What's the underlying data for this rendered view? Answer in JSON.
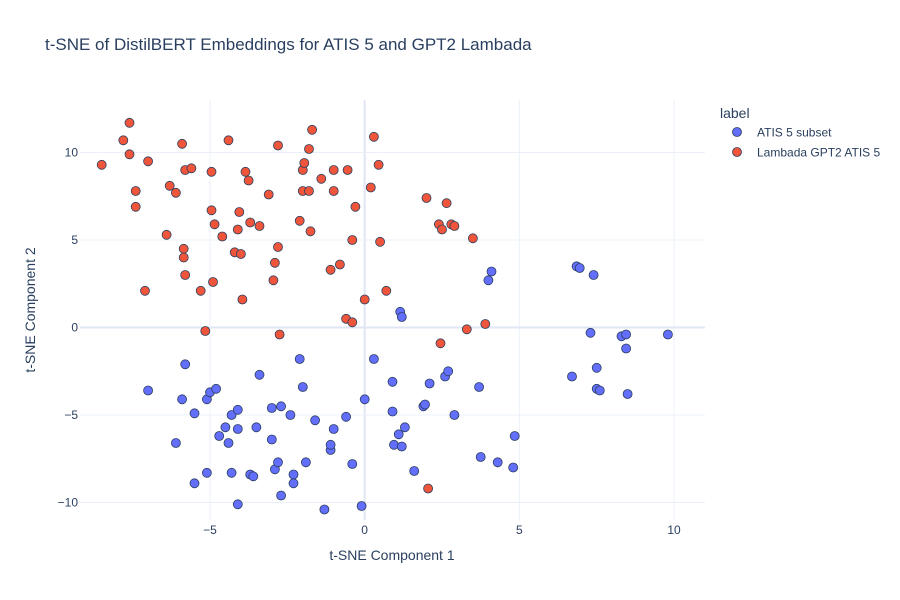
{
  "chart_data": {
    "type": "scatter",
    "title": "t-SNE of DistilBERT Embeddings for ATIS 5 and GPT2 Lambada",
    "xlabel": "t-SNE Component 1",
    "ylabel": "t-SNE Component 2",
    "xlim": [
      -9.2,
      11
    ],
    "ylim": [
      -11,
      13
    ],
    "xticks": [
      -5,
      0,
      5,
      10
    ],
    "yticks": [
      -10,
      -5,
      0,
      5,
      10
    ],
    "xtick_labels": [
      "−5",
      "0",
      "5",
      "10"
    ],
    "ytick_labels": [
      "−10",
      "−5",
      "0",
      "5",
      "10"
    ],
    "grid": true,
    "legend": {
      "title": "label",
      "position": "top-right"
    },
    "series": [
      {
        "name": "ATIS 5 subset",
        "color": "#636efa",
        "points": [
          [
            -7,
            -3.6
          ],
          [
            -5.9,
            -4.1
          ],
          [
            -5.8,
            -2.1
          ],
          [
            -6.1,
            -6.6
          ],
          [
            -5.5,
            -4.9
          ],
          [
            -5.5,
            -8.9
          ],
          [
            -5.1,
            -4.1
          ],
          [
            -5.0,
            -3.7
          ],
          [
            -4.8,
            -3.5
          ],
          [
            -4.7,
            -6.2
          ],
          [
            -5.1,
            -8.3
          ],
          [
            -4.5,
            -5.7
          ],
          [
            -4.4,
            -6.6
          ],
          [
            -4.3,
            -5.0
          ],
          [
            -4.3,
            -8.3
          ],
          [
            -4.1,
            -4.7
          ],
          [
            -4.1,
            -5.8
          ],
          [
            -4.1,
            -10.1
          ],
          [
            -3.7,
            -8.4
          ],
          [
            -3.6,
            -8.5
          ],
          [
            -3.5,
            -5.7
          ],
          [
            -3.4,
            -2.7
          ],
          [
            -3.0,
            -6.4
          ],
          [
            -3.0,
            -4.6
          ],
          [
            -2.9,
            -8.1
          ],
          [
            -2.8,
            -7.7
          ],
          [
            -2.7,
            -4.5
          ],
          [
            -2.7,
            -9.6
          ],
          [
            -2.4,
            -5.0
          ],
          [
            -2.3,
            -8.4
          ],
          [
            -2.3,
            -8.9
          ],
          [
            -2.1,
            -1.8
          ],
          [
            -2.0,
            -3.4
          ],
          [
            -1.9,
            -7.7
          ],
          [
            -1.6,
            -5.3
          ],
          [
            -1.3,
            -10.4
          ],
          [
            -1.1,
            -7.0
          ],
          [
            -1.1,
            -6.7
          ],
          [
            -1.0,
            -5.8
          ],
          [
            -0.6,
            -5.1
          ],
          [
            -0.4,
            -7.8
          ],
          [
            -0.1,
            -10.2
          ],
          [
            0.0,
            -4.1
          ],
          [
            0.3,
            -1.8
          ],
          [
            0.9,
            -3.1
          ],
          [
            0.9,
            -4.8
          ],
          [
            0.95,
            -6.7
          ],
          [
            1.1,
            -6.1
          ],
          [
            1.2,
            -6.8
          ],
          [
            1.3,
            -5.7
          ],
          [
            1.15,
            0.9
          ],
          [
            1.2,
            0.6
          ],
          [
            1.6,
            -8.2
          ],
          [
            1.9,
            -4.5
          ],
          [
            1.95,
            -4.4
          ],
          [
            2.1,
            -3.2
          ],
          [
            2.6,
            -2.8
          ],
          [
            2.7,
            -2.5
          ],
          [
            2.9,
            -5.0
          ],
          [
            3.7,
            -3.4
          ],
          [
            3.75,
            -7.4
          ],
          [
            4.0,
            2.7
          ],
          [
            4.1,
            3.2
          ],
          [
            4.3,
            -7.7
          ],
          [
            4.8,
            -8.0
          ],
          [
            4.85,
            -6.2
          ],
          [
            6.7,
            -2.8
          ],
          [
            6.85,
            3.5
          ],
          [
            6.95,
            3.4
          ],
          [
            7.3,
            -0.3
          ],
          [
            7.4,
            3.0
          ],
          [
            7.5,
            -2.3
          ],
          [
            7.5,
            -3.5
          ],
          [
            7.6,
            -3.6
          ],
          [
            8.3,
            -0.5
          ],
          [
            8.45,
            -0.4
          ],
          [
            8.45,
            -1.2
          ],
          [
            8.5,
            -3.8
          ],
          [
            9.8,
            -0.4
          ]
        ]
      },
      {
        "name": "Lambada GPT2 ATIS 5",
        "color": "#ef553b",
        "points": [
          [
            -8.5,
            9.3
          ],
          [
            -7.8,
            10.7
          ],
          [
            -7.6,
            11.7
          ],
          [
            -7.6,
            9.9
          ],
          [
            -7.4,
            7.8
          ],
          [
            -7.4,
            6.9
          ],
          [
            -7.1,
            2.1
          ],
          [
            -7.0,
            9.5
          ],
          [
            -6.4,
            5.3
          ],
          [
            -6.3,
            8.1
          ],
          [
            -6.1,
            7.7
          ],
          [
            -5.9,
            10.5
          ],
          [
            -5.85,
            4.5
          ],
          [
            -5.85,
            4.0
          ],
          [
            -5.8,
            3.0
          ],
          [
            -5.8,
            9.0
          ],
          [
            -5.6,
            9.1
          ],
          [
            -5.3,
            2.1
          ],
          [
            -5.15,
            -0.2
          ],
          [
            -4.95,
            8.9
          ],
          [
            -4.95,
            6.7
          ],
          [
            -4.9,
            2.6
          ],
          [
            -4.85,
            5.9
          ],
          [
            -4.6,
            5.2
          ],
          [
            -4.4,
            10.7
          ],
          [
            -4.2,
            4.3
          ],
          [
            -4.1,
            5.6
          ],
          [
            -4.05,
            6.6
          ],
          [
            -4.0,
            4.2
          ],
          [
            -3.95,
            1.6
          ],
          [
            -3.85,
            8.9
          ],
          [
            -3.75,
            8.4
          ],
          [
            -3.7,
            6.0
          ],
          [
            -3.4,
            5.8
          ],
          [
            -3.1,
            7.6
          ],
          [
            -2.95,
            2.7
          ],
          [
            -2.9,
            3.7
          ],
          [
            -2.8,
            10.4
          ],
          [
            -2.8,
            4.6
          ],
          [
            -2.75,
            -0.4
          ],
          [
            -2.1,
            6.1
          ],
          [
            -2.0,
            7.8
          ],
          [
            -2.0,
            9.0
          ],
          [
            -1.95,
            9.4
          ],
          [
            -1.8,
            10.2
          ],
          [
            -1.8,
            7.8
          ],
          [
            -1.75,
            5.5
          ],
          [
            -1.7,
            11.3
          ],
          [
            -1.4,
            8.5
          ],
          [
            -1.1,
            3.3
          ],
          [
            -1.0,
            9.0
          ],
          [
            -1.0,
            7.8
          ],
          [
            -0.8,
            3.6
          ],
          [
            -0.6,
            0.5
          ],
          [
            -0.55,
            9.0
          ],
          [
            -0.4,
            0.3
          ],
          [
            -0.4,
            5.0
          ],
          [
            -0.3,
            6.9
          ],
          [
            0.0,
            1.6
          ],
          [
            0.2,
            8.0
          ],
          [
            0.3,
            10.9
          ],
          [
            0.45,
            9.3
          ],
          [
            0.5,
            4.9
          ],
          [
            0.7,
            2.1
          ],
          [
            2.0,
            7.4
          ],
          [
            2.05,
            -9.2
          ],
          [
            2.4,
            5.9
          ],
          [
            2.5,
            5.6
          ],
          [
            2.45,
            -0.9
          ],
          [
            2.65,
            7.1
          ],
          [
            2.8,
            5.9
          ],
          [
            2.9,
            5.8
          ],
          [
            3.3,
            -0.1
          ],
          [
            3.5,
            5.1
          ],
          [
            3.9,
            0.2
          ]
        ]
      }
    ]
  }
}
